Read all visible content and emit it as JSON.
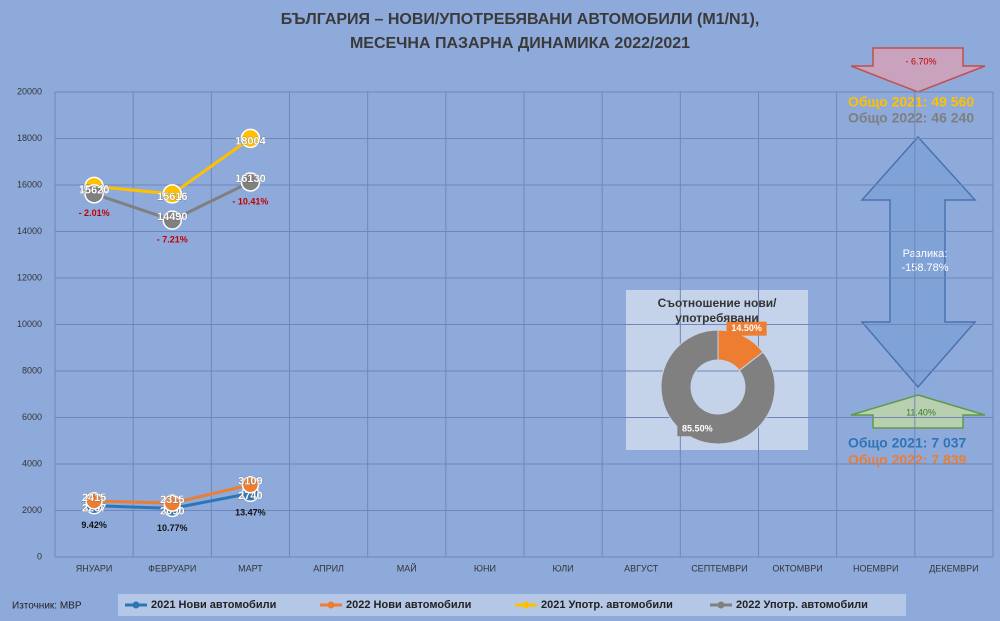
{
  "chart_data": [
    {
      "type": "line",
      "title": [
        "БЪЛГАРИЯ – НОВИ/УПОТРЕБЯВАНИ АВТОМОБИЛИ (M1/N1),",
        "МЕСЕЧНА ПАЗАРНА ДИНАМИКА 2022/2021"
      ],
      "categories": [
        "ЯНУАРИ",
        "ФЕВРУАРИ",
        "МАРТ",
        "АПРИЛ",
        "МАЙ",
        "ЮНИ",
        "ЮЛИ",
        "АВГУСТ",
        "СЕПТЕМВРИ",
        "ОКТОМВРИ",
        "НОЕМВРИ",
        "ДЕКЕМВРИ"
      ],
      "series": [
        {
          "name": "2021 Нови автомобили",
          "color": "#2e75b6",
          "values": [
            2207,
            2090,
            2740,
            null,
            null,
            null,
            null,
            null,
            null,
            null,
            null,
            null
          ]
        },
        {
          "name": "2022 Нови автомобили",
          "color": "#ed7d31",
          "values": [
            2415,
            2315,
            3109,
            null,
            null,
            null,
            null,
            null,
            null,
            null,
            null,
            null
          ]
        },
        {
          "name": "2021 Употр. автомобили",
          "color": "#ffc000",
          "values": [
            15940,
            15616,
            18004,
            null,
            null,
            null,
            null,
            null,
            null,
            null,
            null,
            null
          ]
        },
        {
          "name": "2022 Употр. автомобили",
          "color": "#808080",
          "values": [
            15620,
            14490,
            16130,
            null,
            null,
            null,
            null,
            null,
            null,
            null,
            null,
            null
          ]
        }
      ],
      "change_labels": {
        "new": [
          "9.42%",
          "10.77%",
          "13.47%"
        ],
        "used": [
          "- 2.01%",
          "- 7.21%",
          "- 10.41%"
        ]
      },
      "ylim": [
        0,
        20000
      ],
      "yticks": [
        0,
        2000,
        4000,
        6000,
        8000,
        10000,
        12000,
        14000,
        16000,
        18000,
        20000
      ],
      "grid": true,
      "legend": "bottom"
    },
    {
      "type": "donut",
      "title": "Съотношение нови/употребявани",
      "values": [
        14.5,
        85.5
      ],
      "value_labels": [
        "14.50%",
        "85.50%"
      ],
      "colors": [
        "#ed7d31",
        "#808080"
      ]
    }
  ],
  "summary": {
    "used_change": "- 6.70%",
    "used_total_2021": "Общо 2021: 49 560",
    "used_total_2022": "Общо 2022: 46 240",
    "difference_label": "Разлика:",
    "difference_value": "-158.78%",
    "new_change": "11.40%",
    "new_total_2021": "Общо 2021: 7 037",
    "new_total_2022": "Общо 2022: 7 839"
  },
  "source": "Източник: МВР"
}
